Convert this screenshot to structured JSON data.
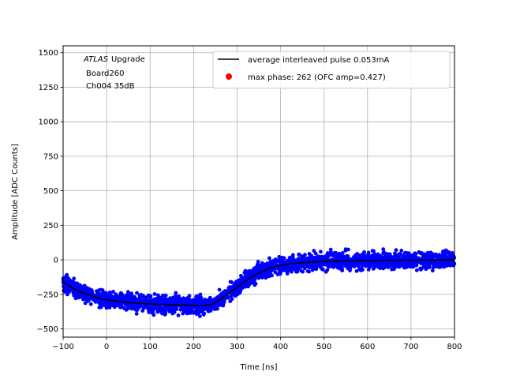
{
  "chart_data": {
    "type": "scatter",
    "title": "",
    "xlabel": "Time [ns]",
    "ylabel": "Amplitude [ADC Counts]",
    "xlim": [
      -100,
      800
    ],
    "ylim": [
      -560,
      1550
    ],
    "xticks": [
      -100,
      0,
      100,
      200,
      300,
      400,
      500,
      600,
      700,
      800
    ],
    "yticks": [
      -500,
      -250,
      0,
      250,
      500,
      750,
      1000,
      1250,
      1500
    ],
    "grid": true,
    "legend_position": "top-right",
    "annotation": {
      "experiment": "ATLAS",
      "line1_suffix": "Upgrade",
      "line2": "Board260",
      "line3": "Ch004 35dB"
    },
    "series": [
      {
        "name": "average interleaved pulse 0.053mA",
        "type": "line",
        "color": "#000000",
        "x": [
          -100,
          -75,
          -50,
          -25,
          0,
          25,
          50,
          75,
          100,
          125,
          150,
          175,
          200,
          225,
          240,
          250,
          260,
          275,
          300,
          325,
          350,
          375,
          400,
          425,
          450,
          500,
          550,
          600,
          650,
          700,
          750,
          800
        ],
        "y": [
          -160,
          -210,
          -245,
          -270,
          -290,
          -300,
          -308,
          -315,
          -320,
          -323,
          -326,
          -328,
          -330,
          -330,
          -325,
          -310,
          -290,
          -255,
          -200,
          -140,
          -95,
          -60,
          -40,
          -28,
          -20,
          -12,
          -8,
          -5,
          -3,
          -2,
          -2,
          0
        ]
      },
      {
        "name": "",
        "type": "scatter",
        "color": "#0000ff",
        "description_spread": 55
      },
      {
        "name": "max phase: 262 (OFC amp=0.427)",
        "type": "scatter",
        "color": "#ff0000",
        "x": [],
        "y": []
      }
    ]
  },
  "legend": {
    "entries": [
      "average interleaved pulse 0.053mA",
      "max phase: 262 (OFC amp=0.427)"
    ]
  }
}
